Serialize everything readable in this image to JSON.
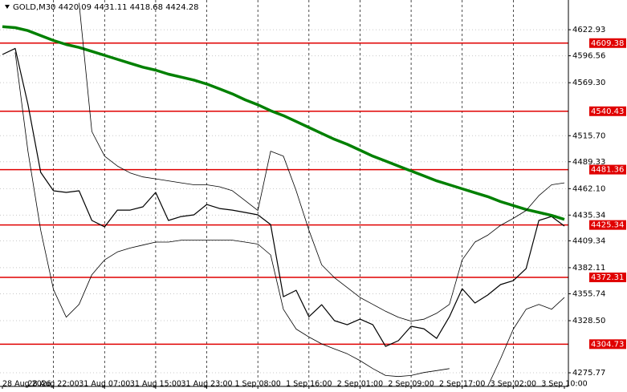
{
  "chart_data": {
    "type": "line",
    "title": "GOLD,M30  4420.09 4431.11 4418.68 4424.28",
    "categories": [
      "28 Aug 2026",
      null,
      null,
      null,
      "28 Aug 22:00",
      null,
      null,
      null,
      "31 Aug 07:00",
      null,
      null,
      null,
      "31 Aug 15:00",
      null,
      null,
      null,
      "31 Aug 23:00",
      null,
      null,
      null,
      "1 Sep 08:00",
      null,
      null,
      null,
      "1 Sep 16:00",
      null,
      null,
      null,
      "2 Sep 01:00",
      null,
      null,
      null,
      "2 Sep 09:00",
      null,
      null,
      null,
      "2 Sep 17:00",
      null,
      null,
      null,
      "3 Sep 02:00",
      null,
      null,
      null,
      "3 Sep 10:00"
    ],
    "series": [
      {
        "color": "#000000",
        "width": 1.2,
        "values": [
          4597.8,
          4604,
          4547.5,
          4478.6,
          4459.9,
          4458.3,
          4459.9,
          4429.9,
          4423.4,
          4440.4,
          4440.4,
          4443.7,
          4458.3,
          4429.9,
          4433.9,
          4435.6,
          4446.1,
          4442.0,
          4440.4,
          4438.0,
          4435.6,
          4425.8,
          4352.8,
          4359.3,
          4332.5,
          4344.7,
          4328.5,
          4324.4,
          4330.1,
          4324.4,
          4302.5,
          4308.2,
          4322.8,
          4320.3,
          4310.6,
          4332.5,
          4360.9,
          4346.4,
          4354.5,
          4365.0,
          4369.0,
          4381.2,
          4429.9,
          4433.9,
          4424.28
        ]
      },
      {
        "color": "#008000",
        "width": 3.5,
        "values": [
          4626,
          4625,
          4622,
          4617,
          4612,
          4608,
          4605,
          4601,
          4597,
          4593,
          4589,
          4585,
          4582,
          4578,
          4575,
          4572,
          4568,
          4563,
          4558,
          4552,
          4547,
          4541,
          4536,
          4530,
          4524,
          4518,
          4512,
          4507,
          4501,
          4495,
          4490,
          4485,
          4480,
          4475,
          4470,
          4466,
          4462,
          4458,
          4454,
          4449,
          4445,
          4441,
          4438,
          4435,
          4431
        ]
      },
      {
        "color": "#000000",
        "width": 0.8,
        "values": [
          null,
          null,
          null,
          null,
          null,
          null,
          4650,
          4520,
          4495,
          4485,
          4478,
          4474,
          4472,
          4470,
          4468,
          4466,
          4466,
          4464,
          4460,
          4450,
          4440,
          4500,
          4495,
          4460,
          4420,
          4385,
          4372,
          4362,
          4352,
          4345,
          4338,
          4332,
          4328,
          4330,
          4336,
          4345,
          4390,
          4408,
          4415,
          4425,
          4432,
          4440,
          4455,
          4466,
          4468
        ]
      },
      {
        "color": "#000000",
        "width": 0.8,
        "values": [
          null,
          4600,
          4500,
          4420,
          4360,
          4332,
          4345,
          4375,
          4390,
          4398,
          4402,
          4405,
          4408,
          4408,
          4410,
          4410,
          4410,
          4410,
          4410,
          4408,
          4406,
          4395,
          4340,
          4320,
          4312,
          4305,
          4300,
          4295,
          4288,
          4280,
          4273,
          4272,
          4273,
          4276,
          4278,
          4280,
          null,
          null,
          4262,
          4290,
          4320,
          4340,
          4345,
          4340,
          4352
        ]
      }
    ],
    "ylim": [
      4262,
      4653
    ],
    "yticks": [
      4622.93,
      4596.56,
      {
        "value": 4569.3,
        "label": "4569.30"
      },
      {
        "value": 4515.7,
        "label": "4515.70"
      },
      4489.33,
      {
        "value": 4462.1,
        "label": "4462.10"
      },
      4435.34,
      4409.34,
      4382.11,
      4355.74,
      {
        "value": 4328.5,
        "label": "4328.50"
      },
      4275.77
    ],
    "levels": [
      4609.38,
      4540.43,
      4481.36,
      4425.34,
      4372.31,
      4304.73
    ],
    "level_color": "#e00000",
    "grid": true
  }
}
